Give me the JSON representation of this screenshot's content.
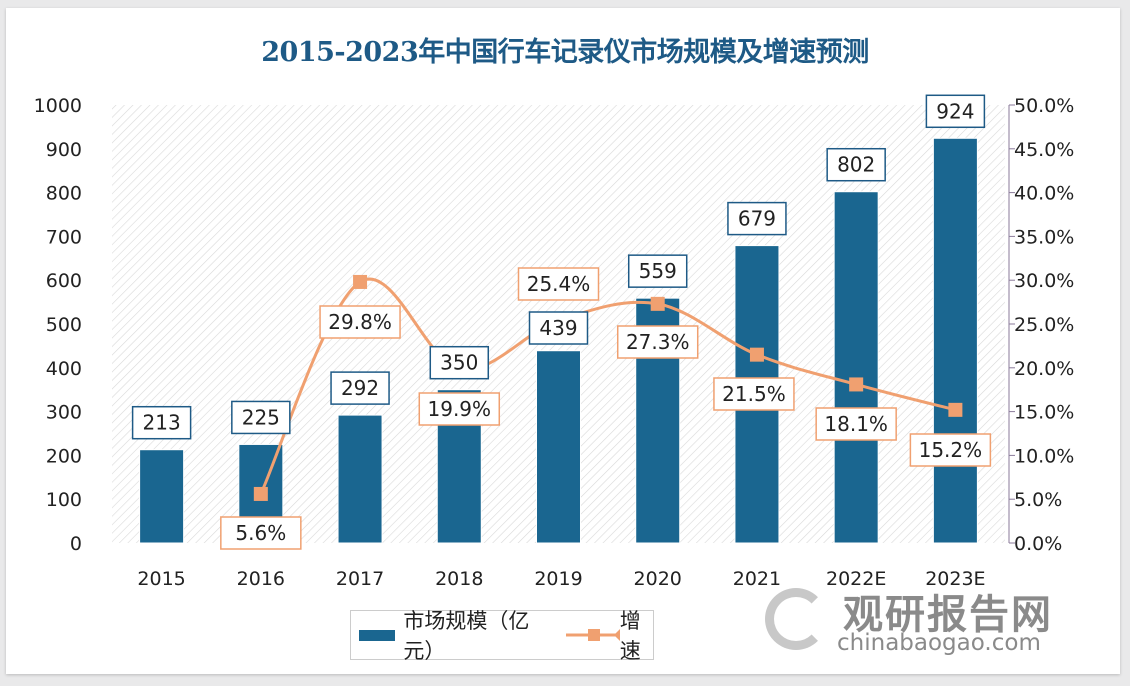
{
  "chart_data": {
    "type": "bar+line",
    "title": "2015-2023年中国行车记录仪市场规模及增速预测",
    "categories": [
      "2015",
      "2016",
      "2017",
      "2018",
      "2019",
      "2020",
      "2021",
      "2022E",
      "2023E"
    ],
    "series": [
      {
        "name": "市场规模（亿元）",
        "type": "bar",
        "axis": "left",
        "color": "#1a6690",
        "values": [
          213,
          225,
          292,
          350,
          439,
          559,
          679,
          802,
          924
        ]
      },
      {
        "name": "增速",
        "type": "line",
        "axis": "right",
        "unit": "%",
        "color": "#f0a070",
        "values": [
          null,
          5.6,
          29.8,
          19.9,
          25.4,
          27.3,
          21.5,
          18.1,
          15.2
        ]
      }
    ],
    "left_axis": {
      "ylim": [
        0,
        1000
      ],
      "ticks": [
        "0",
        "100",
        "200",
        "300",
        "400",
        "500",
        "600",
        "700",
        "800",
        "900",
        "1000"
      ]
    },
    "right_axis": {
      "ylim": [
        0,
        50
      ],
      "ticks": [
        "0.0%",
        "5.0%",
        "10.0%",
        "15.0%",
        "20.0%",
        "25.0%",
        "30.0%",
        "35.0%",
        "40.0%",
        "45.0%",
        "50.0%"
      ]
    },
    "bar_labels": [
      "213",
      "225",
      "292",
      "350",
      "439",
      "559",
      "679",
      "802",
      "924"
    ],
    "line_labels": [
      "",
      "5.6%",
      "29.8%",
      "19.9%",
      "25.4%",
      "27.3%",
      "21.5%",
      "18.1%",
      "15.2%"
    ],
    "grid": false,
    "legend_position": "bottom"
  },
  "watermark": {
    "cn": "观研报告网",
    "en": "chinabaogao.com"
  }
}
